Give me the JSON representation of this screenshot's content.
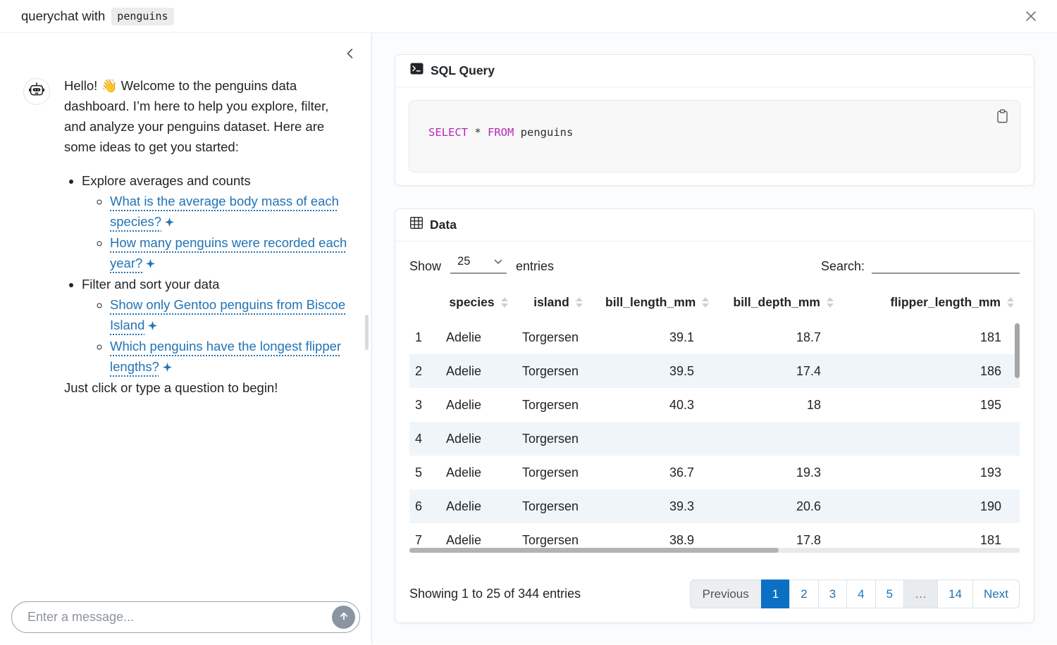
{
  "colors": {
    "accent": "#2273b5",
    "active_page_bg": "#0b70c4",
    "keyword": "#b32ab5",
    "stripe": "#f0f5fa"
  },
  "window": {
    "title_prefix": "querychat with",
    "title_code": "penguins"
  },
  "sidebar": {
    "collapse_icon": "chevron-left",
    "bot_icon": "robot",
    "greeting": "Hello! 👋 Welcome to the penguins data dashboard. I’m here to help you explore, filter, and analyze your penguins dataset. Here are some ideas to get you started:",
    "groups": [
      {
        "label": "Explore averages and counts",
        "links": [
          "What is the average body mass of each species?",
          "How many penguins were recorded each year?"
        ]
      },
      {
        "label": "Filter and sort your data",
        "links": [
          "Show only Gentoo penguins from Biscoe Island",
          "Which penguins have the longest flipper lengths?"
        ]
      }
    ],
    "closing": "Just click or type a question to begin!",
    "input_placeholder": "Enter a message...",
    "send_icon": "arrow-up"
  },
  "sql_card": {
    "title": "SQL Query",
    "icon": "terminal",
    "copy_icon": "clipboard",
    "code": {
      "kw1": "SELECT",
      "mid": " * ",
      "kw2": "FROM",
      "rest": " penguins"
    }
  },
  "data_card": {
    "title": "Data",
    "icon": "table-grid",
    "show_label": "Show",
    "page_size": "25",
    "entries_label": "entries",
    "search_label": "Search:",
    "search_value": "",
    "table": {
      "columns": [
        "species",
        "island",
        "bill_length_mm",
        "bill_depth_mm",
        "flipper_length_mm"
      ],
      "rows": [
        [
          "1",
          "Adelie",
          "Torgersen",
          "39.1",
          "18.7",
          "181"
        ],
        [
          "2",
          "Adelie",
          "Torgersen",
          "39.5",
          "17.4",
          "186"
        ],
        [
          "3",
          "Adelie",
          "Torgersen",
          "40.3",
          "18",
          "195"
        ],
        [
          "4",
          "Adelie",
          "Torgersen",
          "",
          "",
          ""
        ],
        [
          "5",
          "Adelie",
          "Torgersen",
          "36.7",
          "19.3",
          "193"
        ],
        [
          "6",
          "Adelie",
          "Torgersen",
          "39.3",
          "20.6",
          "190"
        ],
        [
          "7",
          "Adelie",
          "Torgersen",
          "38.9",
          "17.8",
          "181"
        ]
      ]
    },
    "summary": "Showing 1 to 25 of 344 entries",
    "pagination": [
      {
        "label": "Previous",
        "state": "prev"
      },
      {
        "label": "1",
        "state": "active"
      },
      {
        "label": "2",
        "state": "link"
      },
      {
        "label": "3",
        "state": "link"
      },
      {
        "label": "4",
        "state": "link"
      },
      {
        "label": "5",
        "state": "link"
      },
      {
        "label": "…",
        "state": "ellipsis"
      },
      {
        "label": "14",
        "state": "link"
      },
      {
        "label": "Next",
        "state": "link"
      }
    ]
  }
}
